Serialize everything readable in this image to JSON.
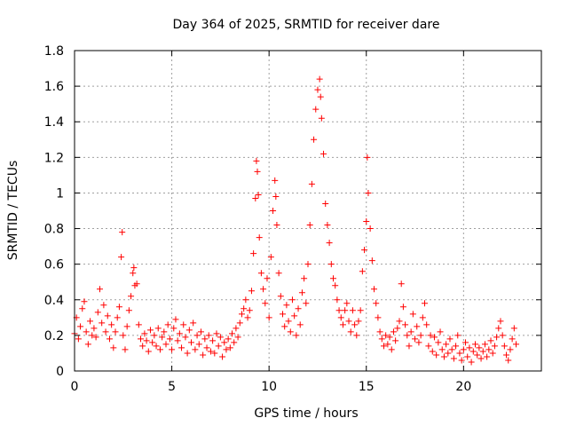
{
  "chart_data": {
    "type": "scatter",
    "title": "Day 364 of 2025, SRMTID for receiver dare",
    "xlabel": "GPS time / hours",
    "ylabel": "SRMTID / TECUs",
    "xlim": [
      0,
      24
    ],
    "ylim": [
      0,
      1.8
    ],
    "xticks": [
      0,
      5,
      10,
      15,
      20
    ],
    "xtick_labels": [
      "0",
      "5",
      "10",
      "15",
      "20"
    ],
    "yticks": [
      0,
      0.2,
      0.4,
      0.6,
      0.8,
      1.0,
      1.2,
      1.4,
      1.6,
      1.8
    ],
    "ytick_labels": [
      "0",
      "0.2",
      "0.4",
      "0.6",
      "0.8",
      "1",
      "1.2",
      "1.4",
      "1.6",
      "1.8"
    ],
    "grid": true,
    "marker": "plus",
    "color": "#ff0000",
    "series": [
      {
        "name": "SRMTID",
        "points": [
          [
            0.0,
            0.21
          ],
          [
            0.1,
            0.3
          ],
          [
            0.2,
            0.18
          ],
          [
            0.3,
            0.25
          ],
          [
            0.4,
            0.35
          ],
          [
            0.5,
            0.39
          ],
          [
            0.6,
            0.22
          ],
          [
            0.7,
            0.15
          ],
          [
            0.8,
            0.28
          ],
          [
            0.9,
            0.2
          ],
          [
            1.0,
            0.24
          ],
          [
            1.1,
            0.19
          ],
          [
            1.2,
            0.33
          ],
          [
            1.3,
            0.46
          ],
          [
            1.4,
            0.27
          ],
          [
            1.5,
            0.37
          ],
          [
            1.6,
            0.22
          ],
          [
            1.7,
            0.31
          ],
          [
            1.8,
            0.18
          ],
          [
            1.9,
            0.26
          ],
          [
            2.0,
            0.13
          ],
          [
            2.1,
            0.22
          ],
          [
            2.2,
            0.3
          ],
          [
            2.3,
            0.36
          ],
          [
            2.4,
            0.64
          ],
          [
            2.45,
            0.78
          ],
          [
            2.5,
            0.2
          ],
          [
            2.6,
            0.12
          ],
          [
            2.7,
            0.25
          ],
          [
            2.8,
            0.34
          ],
          [
            2.9,
            0.42
          ],
          [
            3.0,
            0.55
          ],
          [
            3.05,
            0.58
          ],
          [
            3.1,
            0.48
          ],
          [
            3.2,
            0.49
          ],
          [
            3.3,
            0.26
          ],
          [
            3.4,
            0.18
          ],
          [
            3.5,
            0.14
          ],
          [
            3.6,
            0.21
          ],
          [
            3.7,
            0.17
          ],
          [
            3.8,
            0.11
          ],
          [
            3.9,
            0.23
          ],
          [
            4.0,
            0.16
          ],
          [
            4.1,
            0.2
          ],
          [
            4.2,
            0.14
          ],
          [
            4.3,
            0.24
          ],
          [
            4.4,
            0.12
          ],
          [
            4.5,
            0.19
          ],
          [
            4.6,
            0.22
          ],
          [
            4.7,
            0.15
          ],
          [
            4.8,
            0.26
          ],
          [
            4.9,
            0.18
          ],
          [
            5.0,
            0.12
          ],
          [
            5.1,
            0.24
          ],
          [
            5.2,
            0.29
          ],
          [
            5.3,
            0.17
          ],
          [
            5.4,
            0.21
          ],
          [
            5.5,
            0.13
          ],
          [
            5.6,
            0.26
          ],
          [
            5.7,
            0.19
          ],
          [
            5.8,
            0.1
          ],
          [
            5.9,
            0.23
          ],
          [
            6.0,
            0.16
          ],
          [
            6.1,
            0.27
          ],
          [
            6.2,
            0.12
          ],
          [
            6.3,
            0.2
          ],
          [
            6.4,
            0.15
          ],
          [
            6.5,
            0.22
          ],
          [
            6.6,
            0.09
          ],
          [
            6.7,
            0.18
          ],
          [
            6.8,
            0.13
          ],
          [
            6.9,
            0.2
          ],
          [
            7.0,
            0.11
          ],
          [
            7.1,
            0.17
          ],
          [
            7.2,
            0.1
          ],
          [
            7.3,
            0.21
          ],
          [
            7.4,
            0.14
          ],
          [
            7.5,
            0.19
          ],
          [
            7.6,
            0.08
          ],
          [
            7.7,
            0.16
          ],
          [
            7.8,
            0.12
          ],
          [
            7.9,
            0.18
          ],
          [
            8.0,
            0.13
          ],
          [
            8.1,
            0.21
          ],
          [
            8.2,
            0.16
          ],
          [
            8.3,
            0.24
          ],
          [
            8.4,
            0.19
          ],
          [
            8.5,
            0.27
          ],
          [
            8.6,
            0.32
          ],
          [
            8.7,
            0.35
          ],
          [
            8.8,
            0.4
          ],
          [
            8.9,
            0.3
          ],
          [
            9.0,
            0.34
          ],
          [
            9.1,
            0.45
          ],
          [
            9.2,
            0.66
          ],
          [
            9.3,
            0.97
          ],
          [
            9.35,
            1.18
          ],
          [
            9.4,
            1.12
          ],
          [
            9.45,
            0.99
          ],
          [
            9.5,
            0.75
          ],
          [
            9.6,
            0.55
          ],
          [
            9.7,
            0.46
          ],
          [
            9.8,
            0.38
          ],
          [
            9.9,
            0.52
          ],
          [
            10.0,
            0.3
          ],
          [
            10.1,
            0.64
          ],
          [
            10.2,
            0.9
          ],
          [
            10.3,
            1.07
          ],
          [
            10.35,
            0.98
          ],
          [
            10.4,
            0.82
          ],
          [
            10.5,
            0.55
          ],
          [
            10.6,
            0.42
          ],
          [
            10.7,
            0.32
          ],
          [
            10.8,
            0.25
          ],
          [
            10.9,
            0.37
          ],
          [
            11.0,
            0.28
          ],
          [
            11.1,
            0.22
          ],
          [
            11.2,
            0.4
          ],
          [
            11.3,
            0.31
          ],
          [
            11.4,
            0.2
          ],
          [
            11.5,
            0.35
          ],
          [
            11.6,
            0.26
          ],
          [
            11.7,
            0.44
          ],
          [
            11.8,
            0.52
          ],
          [
            11.9,
            0.38
          ],
          [
            12.0,
            0.6
          ],
          [
            12.1,
            0.82
          ],
          [
            12.2,
            1.05
          ],
          [
            12.3,
            1.3
          ],
          [
            12.4,
            1.47
          ],
          [
            12.5,
            1.58
          ],
          [
            12.6,
            1.64
          ],
          [
            12.65,
            1.54
          ],
          [
            12.7,
            1.42
          ],
          [
            12.8,
            1.22
          ],
          [
            12.9,
            0.94
          ],
          [
            13.0,
            0.82
          ],
          [
            13.1,
            0.72
          ],
          [
            13.2,
            0.6
          ],
          [
            13.3,
            0.52
          ],
          [
            13.4,
            0.48
          ],
          [
            13.5,
            0.4
          ],
          [
            13.6,
            0.34
          ],
          [
            13.7,
            0.3
          ],
          [
            13.8,
            0.26
          ],
          [
            13.9,
            0.34
          ],
          [
            14.0,
            0.38
          ],
          [
            14.1,
            0.28
          ],
          [
            14.2,
            0.22
          ],
          [
            14.3,
            0.34
          ],
          [
            14.4,
            0.26
          ],
          [
            14.5,
            0.2
          ],
          [
            14.6,
            0.28
          ],
          [
            14.7,
            0.34
          ],
          [
            14.8,
            0.56
          ],
          [
            14.9,
            0.68
          ],
          [
            15.0,
            0.84
          ],
          [
            15.05,
            1.2
          ],
          [
            15.1,
            1.0
          ],
          [
            15.2,
            0.8
          ],
          [
            15.3,
            0.62
          ],
          [
            15.4,
            0.46
          ],
          [
            15.5,
            0.38
          ],
          [
            15.6,
            0.3
          ],
          [
            15.7,
            0.22
          ],
          [
            15.8,
            0.18
          ],
          [
            15.9,
            0.14
          ],
          [
            16.0,
            0.2
          ],
          [
            16.1,
            0.15
          ],
          [
            16.2,
            0.19
          ],
          [
            16.3,
            0.12
          ],
          [
            16.4,
            0.22
          ],
          [
            16.5,
            0.17
          ],
          [
            16.6,
            0.24
          ],
          [
            16.7,
            0.28
          ],
          [
            16.8,
            0.49
          ],
          [
            16.9,
            0.36
          ],
          [
            17.0,
            0.26
          ],
          [
            17.1,
            0.2
          ],
          [
            17.2,
            0.14
          ],
          [
            17.3,
            0.22
          ],
          [
            17.4,
            0.32
          ],
          [
            17.5,
            0.18
          ],
          [
            17.6,
            0.25
          ],
          [
            17.7,
            0.16
          ],
          [
            17.8,
            0.2
          ],
          [
            17.9,
            0.3
          ],
          [
            18.0,
            0.38
          ],
          [
            18.1,
            0.26
          ],
          [
            18.2,
            0.14
          ],
          [
            18.3,
            0.2
          ],
          [
            18.4,
            0.11
          ],
          [
            18.5,
            0.19
          ],
          [
            18.6,
            0.09
          ],
          [
            18.7,
            0.16
          ],
          [
            18.8,
            0.22
          ],
          [
            18.9,
            0.12
          ],
          [
            19.0,
            0.08
          ],
          [
            19.1,
            0.15
          ],
          [
            19.2,
            0.1
          ],
          [
            19.3,
            0.18
          ],
          [
            19.4,
            0.12
          ],
          [
            19.5,
            0.07
          ],
          [
            19.6,
            0.14
          ],
          [
            19.7,
            0.2
          ],
          [
            19.8,
            0.1
          ],
          [
            19.9,
            0.06
          ],
          [
            20.0,
            0.12
          ],
          [
            20.1,
            0.16
          ],
          [
            20.2,
            0.08
          ],
          [
            20.3,
            0.13
          ],
          [
            20.4,
            0.05
          ],
          [
            20.5,
            0.11
          ],
          [
            20.6,
            0.15
          ],
          [
            20.7,
            0.09
          ],
          [
            20.8,
            0.13
          ],
          [
            20.9,
            0.07
          ],
          [
            21.0,
            0.11
          ],
          [
            21.1,
            0.15
          ],
          [
            21.2,
            0.08
          ],
          [
            21.3,
            0.12
          ],
          [
            21.4,
            0.17
          ],
          [
            21.5,
            0.1
          ],
          [
            21.6,
            0.14
          ],
          [
            21.7,
            0.19
          ],
          [
            21.8,
            0.24
          ],
          [
            21.9,
            0.28
          ],
          [
            22.0,
            0.2
          ],
          [
            22.1,
            0.14
          ],
          [
            22.2,
            0.09
          ],
          [
            22.3,
            0.06
          ],
          [
            22.4,
            0.12
          ],
          [
            22.5,
            0.18
          ],
          [
            22.6,
            0.24
          ],
          [
            22.7,
            0.15
          ]
        ]
      }
    ]
  }
}
